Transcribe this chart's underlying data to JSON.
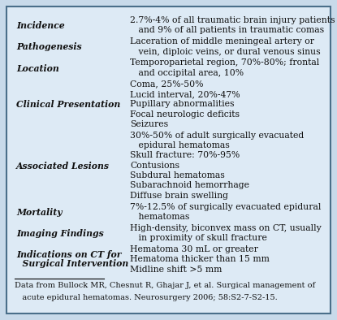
{
  "bg_color": "#c8daea",
  "border_color": "#4a6f8a",
  "table_bg": "#ddeaf5",
  "text_color": "#111111",
  "rows": [
    {
      "label": "Incidence",
      "content_lines": [
        "2.7%-4% of all traumatic brain injury patients",
        "   and 9% of all patients in traumatic comas"
      ]
    },
    {
      "label": "Pathogenesis",
      "content_lines": [
        "Laceration of middle meningeal artery or",
        "   vein, diploic veins, or dural venous sinus"
      ]
    },
    {
      "label": "Location",
      "content_lines": [
        "Temporoparietal region, 70%-80%; frontal",
        "   and occipital area, 10%"
      ]
    },
    {
      "label": "Clinical Presentation",
      "content_lines": [
        "Coma, 25%-50%",
        "Lucid interval, 20%-47%",
        "Pupillary abnormalities",
        "Focal neurologic deficits",
        "Seizures"
      ]
    },
    {
      "label": "Associated Lesions",
      "content_lines": [
        "30%-50% of adult surgically evacuated",
        "   epidural hematomas",
        "Skull fracture: 70%-95%",
        "Contusions",
        "Subdural hematomas",
        "Subarachnoid hemorrhage",
        "Diffuse brain swelling"
      ]
    },
    {
      "label": "Mortality",
      "content_lines": [
        "7%-12.5% of surgically evacuated epidural",
        "   hematomas"
      ]
    },
    {
      "label": "Imaging Findings",
      "content_lines": [
        "High-density, biconvex mass on CT, usually",
        "   in proximity of skull fracture"
      ]
    },
    {
      "label_lines": [
        "Indications on CT for",
        "  Surgical Intervention"
      ],
      "content_lines": [
        "Hematoma 30 mL or greater",
        "Hematoma thicker than 15 mm",
        "Midline shift >5 mm"
      ]
    }
  ],
  "footnote_line1": "Data from Bullock MR, Chesnut R, Ghajar J, et al. Surgical management of",
  "footnote_line2": "   acute epidural hematomas. Neurosurgery 2006; 58:S2-7-S2-15.",
  "label_fontsize": 7.8,
  "content_fontsize": 7.8,
  "footnote_fontsize": 7.0
}
